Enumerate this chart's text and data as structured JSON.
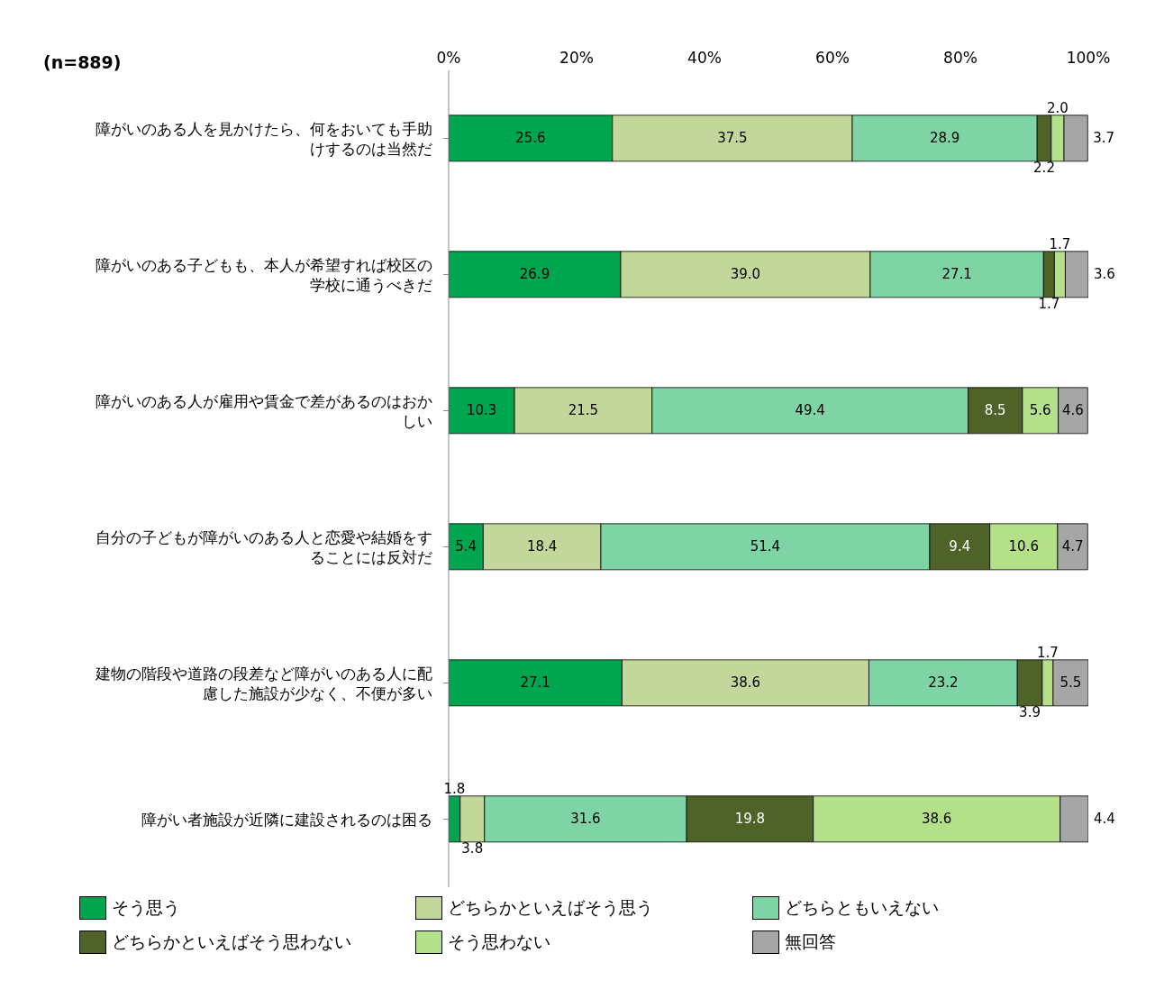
{
  "chart_data": {
    "type": "bar",
    "orientation": "horizontal",
    "stacked": true,
    "legend": "bottom",
    "annotations": [
      "(n=889)"
    ],
    "categories": [
      "障がいのある人を見かけたら、何をおいても手助けするのは当然だ",
      "障がいのある子どもも、本人が希望すれば校区の学校に通うべきだ",
      "障がいのある人が雇用や賃金で差があるのはおかしい",
      "自分の子どもが障がいのある人と恋愛や結婚をすることには反対だ",
      "建物の階段や道路の段差など障がいのある人に配慮した施設が少なく、不便が多い",
      "障がい者施設が近隣に建設されるのは困る"
    ],
    "xlim": [
      0,
      100
    ],
    "xticks": [
      {
        "value": 0,
        "label": "0%"
      },
      {
        "value": 20,
        "label": "20%"
      },
      {
        "value": 40,
        "label": "40%"
      },
      {
        "value": 60,
        "label": "60%"
      },
      {
        "value": 80,
        "label": "80%"
      },
      {
        "value": 100,
        "label": "100%"
      }
    ],
    "series": [
      {
        "name": "そう思う",
        "color": "#00a550",
        "values": [
          25.6,
          26.9,
          10.3,
          5.4,
          27.1,
          1.8
        ],
        "value_labels": [
          "25.6",
          "26.9",
          "10.3",
          "5.4",
          "27.1",
          "1.8"
        ]
      },
      {
        "name": "どちらかといえばそう思う",
        "color": "#c4d79b",
        "values": [
          37.5,
          39.0,
          21.5,
          18.4,
          38.6,
          3.8
        ],
        "value_labels": [
          "37.5",
          "39.0",
          "21.5",
          "18.4",
          "38.6",
          "3.8"
        ]
      },
      {
        "name": "どちらともいえない",
        "color": "#7fd4a6",
        "values": [
          28.9,
          27.1,
          49.4,
          51.4,
          23.2,
          31.6
        ],
        "value_labels": [
          "28.9",
          "27.1",
          "49.4",
          "51.4",
          "23.2",
          "31.6"
        ]
      },
      {
        "name": "どちらかといえばそう思わない",
        "color": "#4f6228",
        "values": [
          2.2,
          1.7,
          8.5,
          9.4,
          3.9,
          19.8
        ],
        "value_labels": [
          "2.2",
          "1.7",
          "8.5",
          "9.4",
          "3.9",
          "19.8"
        ]
      },
      {
        "name": "そう思わない",
        "color": "#b5e08a",
        "values": [
          2.0,
          1.7,
          5.6,
          10.6,
          1.7,
          38.6
        ],
        "value_labels": [
          "2.0",
          "1.7",
          "5.6",
          "10.6",
          "1.7",
          "38.6"
        ]
      },
      {
        "name": "無回答",
        "color": "#a6a6a6",
        "values": [
          3.7,
          3.6,
          4.6,
          4.7,
          5.5,
          4.4
        ],
        "value_labels": [
          "3.7",
          "3.6",
          "4.6",
          "4.7",
          "5.5",
          "4.4"
        ]
      }
    ]
  }
}
